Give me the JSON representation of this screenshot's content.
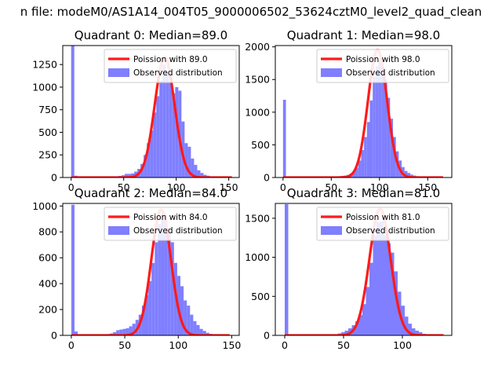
{
  "figure": {
    "suptitle": "n file: modeM0/AS1A14_004T05_9000006502_53624cztM0_level2_quad_clean"
  },
  "legend": {
    "observed_label": "Observed distribution"
  },
  "colors": {
    "hist": "#7f7fff",
    "fit": "#ff1a1a",
    "fit_peak": "#ff8080",
    "axes": "#000000"
  },
  "chart_data": [
    {
      "type": "bar",
      "title": "Quadrant 0: Median=89.0",
      "median": 89.0,
      "fit_label": "Poission with 89.0",
      "xlim": [
        -8,
        160
      ],
      "ylim": [
        0,
        1460
      ],
      "xticks": [
        0,
        50,
        100,
        150
      ],
      "yticks": [
        0,
        250,
        500,
        750,
        1000,
        1250
      ],
      "bin_width": 3,
      "bins": [
        [
          0,
          1460
        ],
        [
          3,
          20
        ],
        [
          6,
          8
        ],
        [
          9,
          5
        ],
        [
          12,
          4
        ],
        [
          15,
          3
        ],
        [
          18,
          3
        ],
        [
          21,
          3
        ],
        [
          24,
          3
        ],
        [
          27,
          3
        ],
        [
          30,
          3
        ],
        [
          33,
          5
        ],
        [
          36,
          5
        ],
        [
          39,
          8
        ],
        [
          42,
          12
        ],
        [
          45,
          18
        ],
        [
          48,
          25
        ],
        [
          51,
          40
        ],
        [
          54,
          40
        ],
        [
          57,
          45
        ],
        [
          60,
          65
        ],
        [
          63,
          95
        ],
        [
          66,
          150
        ],
        [
          69,
          250
        ],
        [
          72,
          380
        ],
        [
          75,
          520
        ],
        [
          78,
          720
        ],
        [
          81,
          900
        ],
        [
          84,
          1070
        ],
        [
          87,
          1250
        ],
        [
          90,
          1170
        ],
        [
          93,
          1060
        ],
        [
          96,
          930
        ],
        [
          99,
          1000
        ],
        [
          102,
          960
        ],
        [
          105,
          620
        ],
        [
          108,
          380
        ],
        [
          111,
          340
        ],
        [
          114,
          210
        ],
        [
          117,
          140
        ],
        [
          120,
          80
        ],
        [
          123,
          50
        ],
        [
          126,
          30
        ],
        [
          129,
          20
        ],
        [
          132,
          10
        ],
        [
          135,
          8
        ],
        [
          138,
          5
        ],
        [
          141,
          3
        ],
        [
          144,
          2
        ],
        [
          147,
          2
        ],
        [
          150,
          2
        ],
        [
          153,
          1
        ]
      ],
      "fit_mean": 89.0,
      "fit_peak": 1330,
      "fit_sigma": 9.434,
      "fit_range": [
        0,
        153
      ]
    },
    {
      "type": "bar",
      "title": "Quadrant 1: Median=98.0",
      "median": 98.0,
      "fit_label": "Poission with 98.0",
      "xlim": [
        -8,
        175
      ],
      "ylim": [
        0,
        2020
      ],
      "xticks": [
        0,
        50,
        100,
        150
      ],
      "yticks": [
        0,
        500,
        1000,
        1500,
        2000
      ],
      "bin_width": 3,
      "bins": [
        [
          0,
          1190
        ],
        [
          3,
          15
        ],
        [
          6,
          8
        ],
        [
          9,
          5
        ],
        [
          12,
          4
        ],
        [
          15,
          3
        ],
        [
          18,
          3
        ],
        [
          21,
          3
        ],
        [
          24,
          3
        ],
        [
          27,
          3
        ],
        [
          30,
          3
        ],
        [
          33,
          3
        ],
        [
          36,
          4
        ],
        [
          39,
          5
        ],
        [
          42,
          6
        ],
        [
          45,
          8
        ],
        [
          48,
          10
        ],
        [
          51,
          12
        ],
        [
          54,
          15
        ],
        [
          57,
          20
        ],
        [
          60,
          25
        ],
        [
          63,
          30
        ],
        [
          66,
          40
        ],
        [
          69,
          60
        ],
        [
          72,
          90
        ],
        [
          75,
          150
        ],
        [
          78,
          260
        ],
        [
          81,
          420
        ],
        [
          84,
          620
        ],
        [
          87,
          850
        ],
        [
          90,
          1180
        ],
        [
          93,
          1540
        ],
        [
          96,
          1700
        ],
        [
          99,
          1800
        ],
        [
          102,
          1680
        ],
        [
          105,
          1500
        ],
        [
          108,
          1220
        ],
        [
          111,
          900
        ],
        [
          114,
          620
        ],
        [
          117,
          400
        ],
        [
          120,
          260
        ],
        [
          123,
          160
        ],
        [
          126,
          100
        ],
        [
          129,
          70
        ],
        [
          132,
          45
        ],
        [
          135,
          30
        ],
        [
          138,
          20
        ],
        [
          141,
          12
        ],
        [
          144,
          8
        ],
        [
          147,
          5
        ],
        [
          150,
          4
        ],
        [
          153,
          3
        ],
        [
          156,
          2
        ],
        [
          159,
          2
        ],
        [
          162,
          1
        ],
        [
          165,
          1
        ]
      ],
      "fit_mean": 98.0,
      "fit_peak": 1950,
      "fit_sigma": 9.899,
      "fit_range": [
        0,
        166
      ]
    },
    {
      "type": "bar",
      "title": "Quadrant 2: Median=84.0",
      "median": 84.0,
      "fit_label": "Poission with 84.0",
      "xlim": [
        -8,
        157
      ],
      "ylim": [
        0,
        1020
      ],
      "xticks": [
        0,
        50,
        100,
        150
      ],
      "yticks": [
        0,
        200,
        400,
        600,
        800,
        1000
      ],
      "bin_width": 3,
      "bins": [
        [
          0,
          1010
        ],
        [
          3,
          30
        ],
        [
          6,
          8
        ],
        [
          9,
          5
        ],
        [
          12,
          4
        ],
        [
          15,
          4
        ],
        [
          18,
          4
        ],
        [
          21,
          4
        ],
        [
          24,
          5
        ],
        [
          27,
          5
        ],
        [
          30,
          6
        ],
        [
          33,
          10
        ],
        [
          36,
          15
        ],
        [
          39,
          25
        ],
        [
          42,
          40
        ],
        [
          45,
          45
        ],
        [
          48,
          50
        ],
        [
          51,
          55
        ],
        [
          54,
          70
        ],
        [
          57,
          90
        ],
        [
          60,
          120
        ],
        [
          63,
          160
        ],
        [
          66,
          230
        ],
        [
          69,
          310
        ],
        [
          72,
          420
        ],
        [
          75,
          560
        ],
        [
          78,
          720
        ],
        [
          81,
          860
        ],
        [
          84,
          930
        ],
        [
          87,
          890
        ],
        [
          90,
          820
        ],
        [
          93,
          720
        ],
        [
          96,
          560
        ],
        [
          99,
          460
        ],
        [
          102,
          380
        ],
        [
          105,
          270
        ],
        [
          108,
          230
        ],
        [
          111,
          160
        ],
        [
          114,
          110
        ],
        [
          117,
          80
        ],
        [
          120,
          50
        ],
        [
          123,
          35
        ],
        [
          126,
          20
        ],
        [
          129,
          12
        ],
        [
          132,
          8
        ],
        [
          135,
          5
        ],
        [
          138,
          4
        ],
        [
          141,
          3
        ],
        [
          144,
          2
        ],
        [
          147,
          1
        ]
      ],
      "fit_mean": 84.0,
      "fit_peak": 970,
      "fit_sigma": 9.165,
      "fit_range": [
        0,
        148
      ]
    },
    {
      "type": "bar",
      "title": "Quadrant 3: Median=81.0",
      "median": 81.0,
      "fit_label": "Poission with 81.0",
      "xlim": [
        -8,
        142
      ],
      "ylim": [
        0,
        1690
      ],
      "xticks": [
        0,
        50,
        100
      ],
      "yticks": [
        0,
        500,
        1000,
        1500
      ],
      "bin_width": 3,
      "bins": [
        [
          0,
          1680
        ],
        [
          3,
          15
        ],
        [
          6,
          6
        ],
        [
          9,
          4
        ],
        [
          12,
          3
        ],
        [
          15,
          3
        ],
        [
          18,
          3
        ],
        [
          21,
          3
        ],
        [
          24,
          3
        ],
        [
          27,
          3
        ],
        [
          30,
          4
        ],
        [
          33,
          5
        ],
        [
          36,
          6
        ],
        [
          39,
          8
        ],
        [
          42,
          15
        ],
        [
          45,
          25
        ],
        [
          48,
          40
        ],
        [
          51,
          60
        ],
        [
          54,
          90
        ],
        [
          57,
          130
        ],
        [
          60,
          180
        ],
        [
          63,
          260
        ],
        [
          66,
          400
        ],
        [
          69,
          620
        ],
        [
          72,
          930
        ],
        [
          75,
          1280
        ],
        [
          78,
          1450
        ],
        [
          81,
          1460
        ],
        [
          84,
          1280
        ],
        [
          87,
          1180
        ],
        [
          90,
          1060
        ],
        [
          93,
          820
        ],
        [
          96,
          560
        ],
        [
          99,
          380
        ],
        [
          102,
          240
        ],
        [
          105,
          150
        ],
        [
          108,
          90
        ],
        [
          111,
          60
        ],
        [
          114,
          40
        ],
        [
          117,
          20
        ],
        [
          120,
          12
        ],
        [
          123,
          8
        ],
        [
          126,
          5
        ],
        [
          129,
          3
        ],
        [
          132,
          2
        ],
        [
          135,
          1
        ]
      ],
      "fit_mean": 81.0,
      "fit_peak": 1620,
      "fit_sigma": 9.0,
      "fit_range": [
        0,
        135
      ]
    }
  ]
}
